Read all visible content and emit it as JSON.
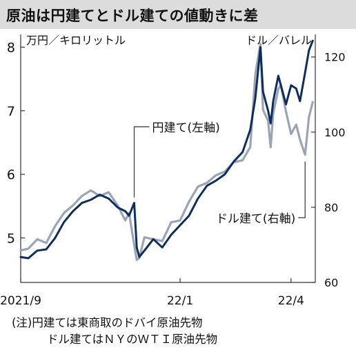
{
  "title": "原油は円建てとドル建ての値動きに差",
  "notes": [
    "(注)円建ては東商取のドバイ原油先物",
    "ドル建てはＮＹのＷＴＩ原油先物"
  ],
  "colors": {
    "yen_series": "#0d2d5e",
    "dollar_series": "#9aa4b6",
    "title_background": "#dcdcdc",
    "axis": "#333333"
  },
  "chart_data": {
    "type": "line",
    "x_ticks": [
      "2021/9",
      "22/1",
      "22/4"
    ],
    "x_tick_dates": [
      "2021-09-01",
      "2022-01-04",
      "2022-04-01"
    ],
    "x_range": [
      "2021-09-01",
      "2022-04-20"
    ],
    "left_axis": {
      "unit_label": "万円／キロリットル",
      "ticks": [
        "5",
        "6",
        "7",
        "8"
      ],
      "range": [
        4.3,
        8.2
      ]
    },
    "right_axis": {
      "unit_label": "ドル／バレル",
      "ticks": [
        "60",
        "80",
        "100",
        "120"
      ],
      "range": [
        60,
        126
      ]
    },
    "grid": false,
    "series": [
      {
        "name": "円建て(左軸)",
        "axis": "left",
        "color": "#0d2d5e",
        "points": [
          [
            "2021-09-01",
            4.7
          ],
          [
            "2021-09-07",
            4.68
          ],
          [
            "2021-09-14",
            4.8
          ],
          [
            "2021-09-21",
            4.82
          ],
          [
            "2021-09-28",
            5.0
          ],
          [
            "2021-10-05",
            5.25
          ],
          [
            "2021-10-12",
            5.42
          ],
          [
            "2021-10-19",
            5.55
          ],
          [
            "2021-10-26",
            5.6
          ],
          [
            "2021-11-02",
            5.68
          ],
          [
            "2021-11-09",
            5.62
          ],
          [
            "2021-11-16",
            5.48
          ],
          [
            "2021-11-22",
            5.42
          ],
          [
            "2021-11-25",
            5.35
          ],
          [
            "2021-11-29",
            5.55
          ],
          [
            "2021-12-01",
            4.85
          ],
          [
            "2021-12-03",
            4.7
          ],
          [
            "2021-12-07",
            4.8
          ],
          [
            "2021-12-14",
            4.98
          ],
          [
            "2021-12-21",
            4.85
          ],
          [
            "2021-12-28",
            5.05
          ],
          [
            "2022-01-04",
            5.2
          ],
          [
            "2022-01-11",
            5.35
          ],
          [
            "2022-01-18",
            5.62
          ],
          [
            "2022-01-25",
            5.82
          ],
          [
            "2022-02-01",
            5.9
          ],
          [
            "2022-02-08",
            6.0
          ],
          [
            "2022-02-15",
            6.2
          ],
          [
            "2022-02-22",
            6.35
          ],
          [
            "2022-02-28",
            6.7
          ],
          [
            "2022-03-04",
            7.2
          ],
          [
            "2022-03-08",
            8.0
          ],
          [
            "2022-03-10",
            7.3
          ],
          [
            "2022-03-14",
            7.0
          ],
          [
            "2022-03-16",
            6.8
          ],
          [
            "2022-03-18",
            7.15
          ],
          [
            "2022-03-22",
            7.55
          ],
          [
            "2022-03-24",
            7.4
          ],
          [
            "2022-03-28",
            7.1
          ],
          [
            "2022-04-01",
            7.4
          ],
          [
            "2022-04-05",
            7.35
          ],
          [
            "2022-04-08",
            7.15
          ],
          [
            "2022-04-12",
            7.6
          ],
          [
            "2022-04-15",
            7.95
          ],
          [
            "2022-04-18",
            8.1
          ]
        ]
      },
      {
        "name": "ドル建て(右軸)",
        "axis": "right",
        "color": "#9aa4b6",
        "points": [
          [
            "2021-09-01",
            68.5
          ],
          [
            "2021-09-07",
            69.0
          ],
          [
            "2021-09-14",
            71.5
          ],
          [
            "2021-09-21",
            70.5
          ],
          [
            "2021-09-28",
            75.0
          ],
          [
            "2021-10-05",
            78.5
          ],
          [
            "2021-10-12",
            80.5
          ],
          [
            "2021-10-19",
            83.0
          ],
          [
            "2021-10-26",
            84.5
          ],
          [
            "2021-11-02",
            83.0
          ],
          [
            "2021-11-09",
            84.0
          ],
          [
            "2021-11-16",
            80.5
          ],
          [
            "2021-11-22",
            76.5
          ],
          [
            "2021-11-25",
            78.5
          ],
          [
            "2021-11-29",
            70.0
          ],
          [
            "2021-12-01",
            66.0
          ],
          [
            "2021-12-03",
            66.5
          ],
          [
            "2021-12-07",
            72.0
          ],
          [
            "2021-12-14",
            71.5
          ],
          [
            "2021-12-21",
            71.0
          ],
          [
            "2021-12-28",
            76.0
          ],
          [
            "2022-01-04",
            76.5
          ],
          [
            "2022-01-11",
            81.5
          ],
          [
            "2022-01-18",
            85.5
          ],
          [
            "2022-01-25",
            86.5
          ],
          [
            "2022-02-01",
            88.5
          ],
          [
            "2022-02-08",
            89.5
          ],
          [
            "2022-02-15",
            92.0
          ],
          [
            "2022-02-22",
            92.5
          ],
          [
            "2022-02-28",
            96.0
          ],
          [
            "2022-03-04",
            115.5
          ],
          [
            "2022-03-08",
            123.5
          ],
          [
            "2022-03-10",
            106.0
          ],
          [
            "2022-03-14",
            103.0
          ],
          [
            "2022-03-16",
            96.0
          ],
          [
            "2022-03-18",
            105.0
          ],
          [
            "2022-03-22",
            111.5
          ],
          [
            "2022-03-24",
            112.5
          ],
          [
            "2022-03-28",
            105.5
          ],
          [
            "2022-04-01",
            99.5
          ],
          [
            "2022-04-05",
            102.0
          ],
          [
            "2022-04-08",
            98.0
          ],
          [
            "2022-04-12",
            94.0
          ],
          [
            "2022-04-15",
            104.0
          ],
          [
            "2022-04-18",
            108.0
          ]
        ]
      }
    ]
  }
}
